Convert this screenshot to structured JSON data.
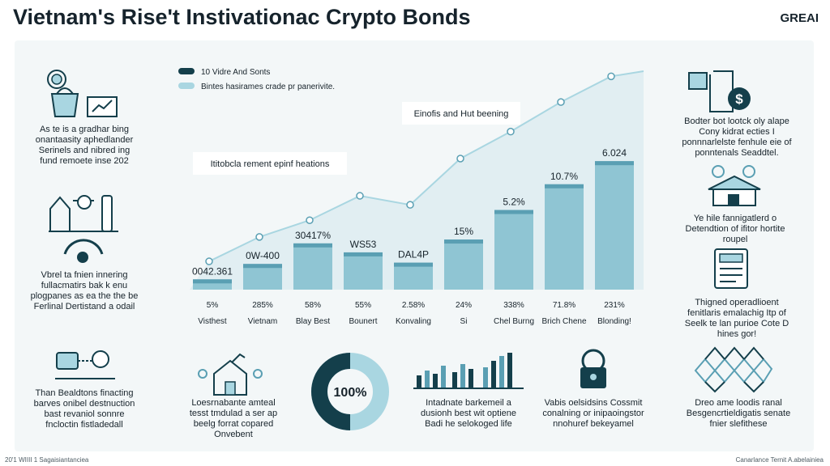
{
  "header": {
    "title": "Vietnam's Rise't Instivationac Crypto Bonds",
    "brand": "GREAI"
  },
  "footer": {
    "left": "20'1 WIIII 1 Sagaisiantanciea",
    "right": "Canarlance Ternit A.abelainiea"
  },
  "colors": {
    "bar": "#8fc5d3",
    "bar_dark": "#5a9fb3",
    "dark": "#143f4b",
    "light": "#a9d6e1",
    "area": "#dfecf1"
  },
  "chart_data": {
    "type": "bar",
    "legend": [
      {
        "label": "10 Vidre And Sonts",
        "color": "#143f4b"
      },
      {
        "label": "Bintes hasirames crade pr panerivite.",
        "color": "#a9d6e1"
      }
    ],
    "legend_position": "top-left",
    "categories": [
      "Visthest",
      "Vietnam",
      "Blay Best",
      "Bounert",
      "Konvaling",
      "Si",
      "Chel Burng",
      "Brich Chene",
      "Blonding!"
    ],
    "percent_labels": [
      "5%",
      "285%",
      "58%",
      "55%",
      "2.58%",
      "24%",
      "338%",
      "71.8%",
      "231%"
    ],
    "bar_labels": [
      "0042.361",
      "0W-400",
      "30417%",
      "WS53",
      "DAL4P",
      "15%",
      "5.2%",
      "10.7%",
      "6.024"
    ],
    "values": [
      0.8,
      2.0,
      3.6,
      2.9,
      2.1,
      3.9,
      6.2,
      8.2,
      10.0
    ],
    "trend": [
      2.2,
      4.1,
      5.4,
      7.3,
      6.6,
      10.2,
      12.3,
      14.6,
      16.6
    ],
    "annotations": [
      "Einofis and Hut beening",
      "Ititobcla rement epinf heations"
    ],
    "ylim": [
      0,
      17
    ],
    "grid": false
  },
  "sections": {
    "top_left": "As te is a gradhar bing onantaasity aphedlander Serinels and nibred ing fund remoete inse 202",
    "mid_left": "Vbrel ta fnien innering fullacmatirs bak k enu plogpanes as ea the the be Ferlinal Dertistand a odail",
    "bottom_left": "Than Bealdtons finacting barves onibel destnuction bast revaniol sonnre fncloctin fistladedall",
    "top_right": "Bodter bot lootck oly alape Cony kidrat ecties I ponnnarlelste fenhule eie of ponntenals Seaddtel.",
    "mid_right": "Ye hile fannigatlerd o Detendtion of ifitor hortite roupel",
    "right_lower": "Thigned operadlioent fenitlaris emalachig Itp of Seelk te lan purioe Cote D hines gor!",
    "bottom_right": "Dreo ame loodis ranal Besgencrtieldigatis senate fnier slefithese",
    "bottom_1": "Loesrnabante amteal tesst tmdulad a ser ap beelg forrat copared Onvebent",
    "bottom_pie_value": "100%",
    "bottom_3": "Intadnate barkemeil a dusionh best wit optiene Badi he selokoged life",
    "bottom_4": "Vabis oelsidsins Cossmit conalning or inipaoingstor nnohuref bekeyamel"
  }
}
